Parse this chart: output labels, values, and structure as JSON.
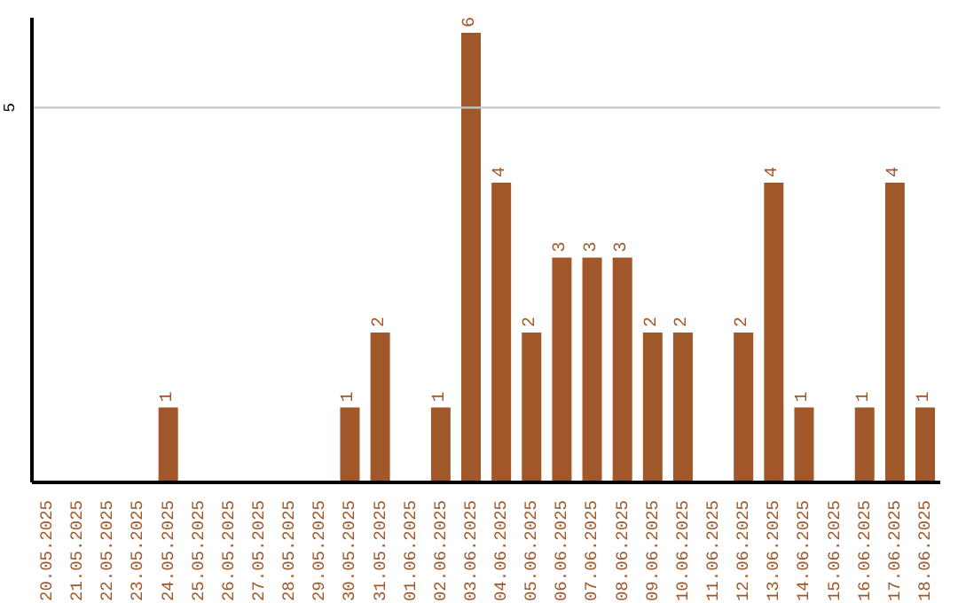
{
  "chart_data": {
    "type": "bar",
    "categories": [
      "20.05.2025",
      "21.05.2025",
      "22.05.2025",
      "23.05.2025",
      "24.05.2025",
      "25.05.2025",
      "26.05.2025",
      "27.05.2025",
      "28.05.2025",
      "29.05.2025",
      "30.05.2025",
      "31.05.2025",
      "01.06.2025",
      "02.06.2025",
      "03.06.2025",
      "04.06.2025",
      "05.06.2025",
      "06.06.2025",
      "07.06.2025",
      "08.06.2025",
      "09.06.2025",
      "10.06.2025",
      "11.06.2025",
      "12.06.2025",
      "13.06.2025",
      "14.06.2025",
      "15.06.2025",
      "16.06.2025",
      "17.06.2025",
      "18.06.2025"
    ],
    "values": [
      null,
      null,
      null,
      null,
      1,
      null,
      null,
      null,
      null,
      null,
      1,
      2,
      null,
      1,
      6,
      4,
      2,
      3,
      3,
      3,
      2,
      2,
      null,
      2,
      4,
      1,
      null,
      1,
      4,
      1
    ],
    "color": "#a0572a",
    "ylim": [
      0,
      6.2
    ],
    "yticks": [
      5
    ],
    "grid": "y",
    "data_labels": true
  }
}
